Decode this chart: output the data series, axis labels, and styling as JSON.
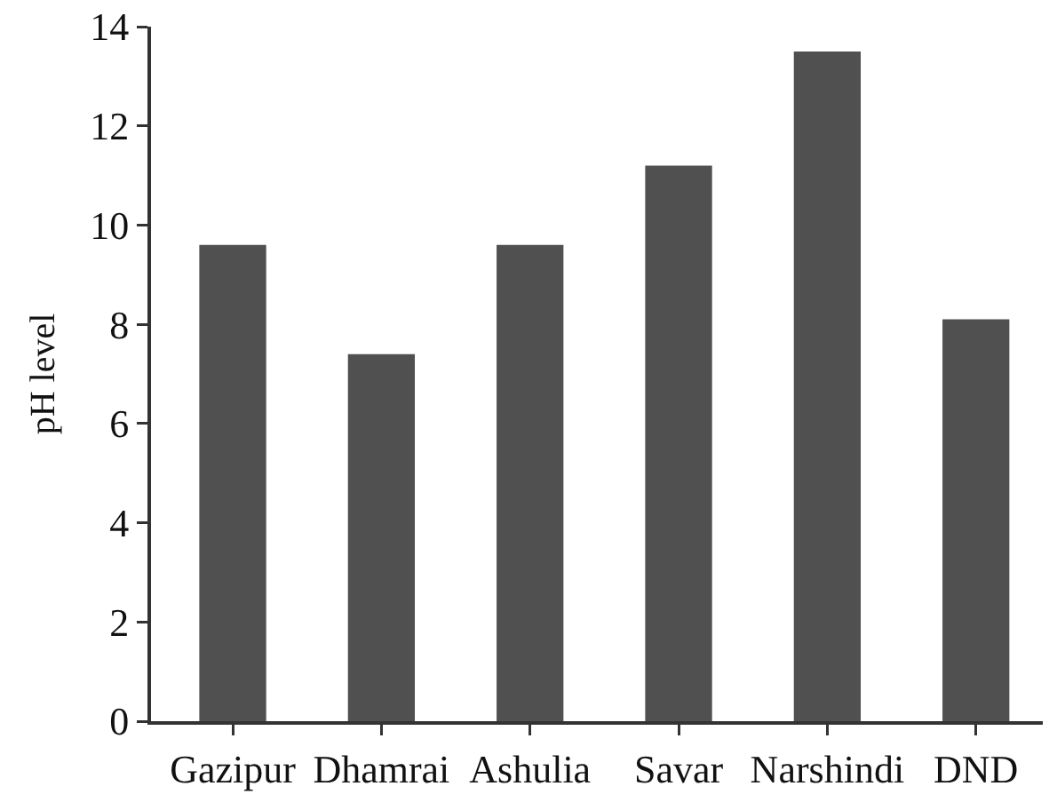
{
  "chart_data": {
    "type": "bar",
    "ylabel": "pH level",
    "categories": [
      "Gazipur",
      "Dhamrai",
      "Ashulia",
      "Savar",
      "Narshindi",
      "DND"
    ],
    "values": [
      9.6,
      7.4,
      9.6,
      11.2,
      13.5,
      8.1
    ],
    "color": "#505050",
    "ylim": [
      0,
      14
    ],
    "yticks": [
      0,
      2,
      4,
      6,
      8,
      10,
      12,
      14
    ],
    "grid": false,
    "legend": false
  }
}
